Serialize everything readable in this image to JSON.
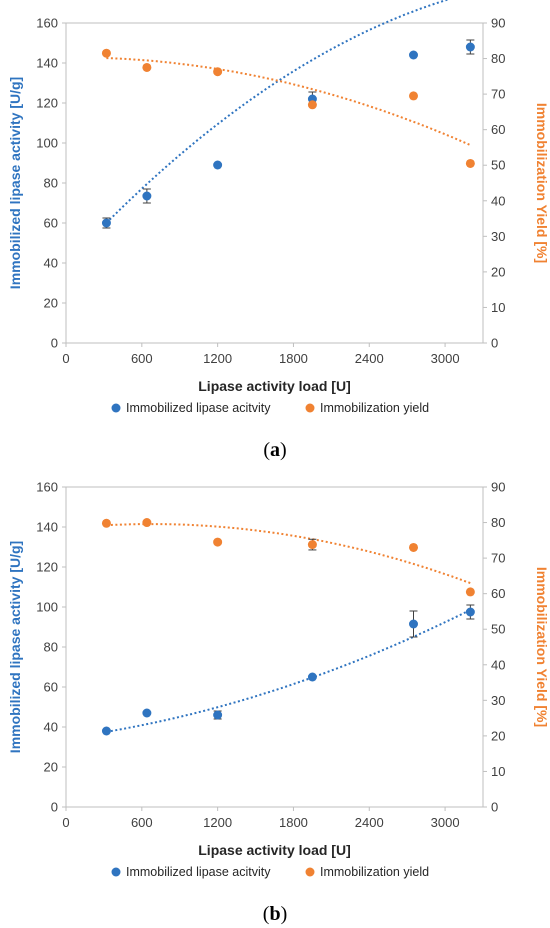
{
  "colors": {
    "activity": "#2F74C0",
    "yield": "#F08232",
    "axis": "#BFBFBF",
    "text": "#404040"
  },
  "chart_data": [
    {
      "type": "scatter",
      "panel_label": "a",
      "xlabel": "Lipase activity load [U]",
      "ylabel_left": "Immobilized lipase activity [U/g]",
      "ylabel_right": "Immobilization Yield [%]",
      "xlim": [
        0,
        3300
      ],
      "xticks": [
        0,
        600,
        1200,
        1800,
        2400,
        3000
      ],
      "ylim_left": [
        0,
        160
      ],
      "yticks_left": [
        0,
        20,
        40,
        60,
        80,
        100,
        120,
        140,
        160
      ],
      "ylim_right": [
        0,
        90
      ],
      "yticks_right": [
        0,
        10,
        20,
        30,
        40,
        50,
        60,
        70,
        80,
        90
      ],
      "legend_position": "bottom",
      "series": [
        {
          "name": "Immobilized lipase acitvity",
          "axis": "left",
          "color": "#2F74C0",
          "x": [
            320,
            640,
            1200,
            1950,
            2750,
            3200
          ],
          "y": [
            60,
            73.5,
            89,
            122,
            144,
            148
          ],
          "error": [
            2.5,
            3.5,
            0,
            3.5,
            0,
            3.5
          ],
          "trendline": {
            "type": "polynomial",
            "x": [
              320,
              3200
            ],
            "coeffs": [
              39,
              0.0684,
              -8.1e-06
            ]
          }
        },
        {
          "name": "Immobilization yield",
          "axis": "right",
          "color": "#F08232",
          "x": [
            320,
            640,
            1200,
            1950,
            2750,
            3200
          ],
          "y": [
            81.5,
            77.5,
            76.3,
            67,
            69.5,
            50.5
          ],
          "error": [
            0,
            0,
            0,
            0,
            0,
            0
          ],
          "trendline": {
            "type": "polynomial",
            "x": [
              320,
              3200
            ],
            "coeffs": [
              80.3,
              0.0003,
              -2.5e-06
            ]
          }
        }
      ]
    },
    {
      "type": "scatter",
      "panel_label": "b",
      "xlabel": "Lipase activity load [U]",
      "ylabel_left": "Immobilized lipase activity [U/g]",
      "ylabel_right": "Immobilization Yield [%]",
      "xlim": [
        0,
        3300
      ],
      "xticks": [
        0,
        600,
        1200,
        1800,
        2400,
        3000
      ],
      "ylim_left": [
        0,
        160
      ],
      "yticks_left": [
        0,
        20,
        40,
        60,
        80,
        100,
        120,
        140,
        160
      ],
      "ylim_right": [
        0,
        90
      ],
      "yticks_right": [
        0,
        10,
        20,
        30,
        40,
        50,
        60,
        70,
        80,
        90
      ],
      "legend_position": "bottom",
      "series": [
        {
          "name": "Immobilized lipase acitvity",
          "axis": "left",
          "color": "#2F74C0",
          "x": [
            320,
            640,
            1200,
            1950,
            2750,
            3200
          ],
          "y": [
            38,
            47,
            46,
            65,
            91.5,
            97.5
          ],
          "error": [
            0,
            0,
            2,
            0,
            6.5,
            3.5
          ],
          "trendline": {
            "type": "polynomial",
            "x": [
              320,
              3200
            ],
            "coeffs": [
              34.5,
              0.0085,
              3.6e-06
            ]
          }
        },
        {
          "name": "Immobilization yield",
          "axis": "right",
          "color": "#F08232",
          "x": [
            320,
            640,
            1200,
            1950,
            2750,
            3200
          ],
          "y": [
            79.8,
            80,
            74.5,
            73.8,
            73,
            60.5
          ],
          "error": [
            0,
            0,
            0,
            1.5,
            0,
            0
          ],
          "trendline": {
            "type": "polynomial",
            "x": [
              320,
              3200
            ],
            "coeffs": [
              78.4,
              0.0035,
              -2.6e-06
            ]
          }
        }
      ]
    }
  ]
}
